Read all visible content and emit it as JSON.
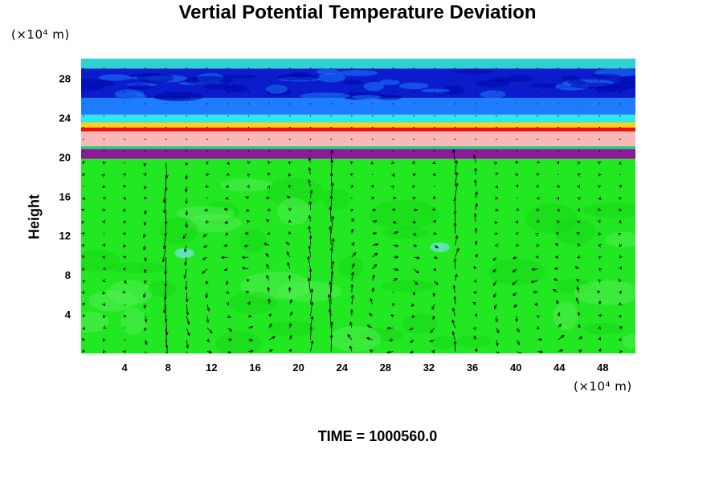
{
  "chart_data": {
    "type": "heatmap",
    "title": "Vertial Potential Temperature Deviation",
    "ylabel": "Height",
    "y_unit": "(×10⁴ m)",
    "x_unit": "(×10⁴ m)",
    "x_ticks": [
      4,
      8,
      12,
      16,
      20,
      24,
      28,
      32,
      36,
      40,
      44,
      48
    ],
    "y_ticks": [
      4,
      8,
      12,
      16,
      20,
      24,
      28
    ],
    "xlim": [
      0,
      51
    ],
    "ylim": [
      0,
      30
    ],
    "annotation": "TIME = 1000560.0",
    "overlay": "velocity vector arrows",
    "bands": [
      {
        "y": [
          0,
          19.8
        ],
        "color": "#22e822"
      },
      {
        "y": [
          19.8,
          20.8
        ],
        "color": "#8b1a9a"
      },
      {
        "y": [
          20.8,
          21.1
        ],
        "color": "#2bd07a"
      },
      {
        "y": [
          21.1,
          22.6
        ],
        "color": "#f7b8b8"
      },
      {
        "y": [
          22.6,
          23.0
        ],
        "color": "#ee1111"
      },
      {
        "y": [
          23.0,
          23.5
        ],
        "color": "#ffd21a"
      },
      {
        "y": [
          23.5,
          24.3
        ],
        "color": "#30e8e8"
      },
      {
        "y": [
          24.3,
          26.0
        ],
        "color": "#1e7cff"
      },
      {
        "y": [
          26.0,
          29.0
        ],
        "color": "#0a1ccc"
      },
      {
        "y": [
          29.0,
          30.0
        ],
        "color": "#2fd0d0"
      }
    ],
    "circulation_cells": [
      {
        "cx": 15,
        "cy": 5.5,
        "rx": 6,
        "ry": 6
      },
      {
        "cx": 29,
        "cy": 5.5,
        "rx": 5.5,
        "ry": 6
      },
      {
        "cx": 42,
        "cy": 4.0,
        "rx": 4.5,
        "ry": 4.5
      }
    ]
  }
}
